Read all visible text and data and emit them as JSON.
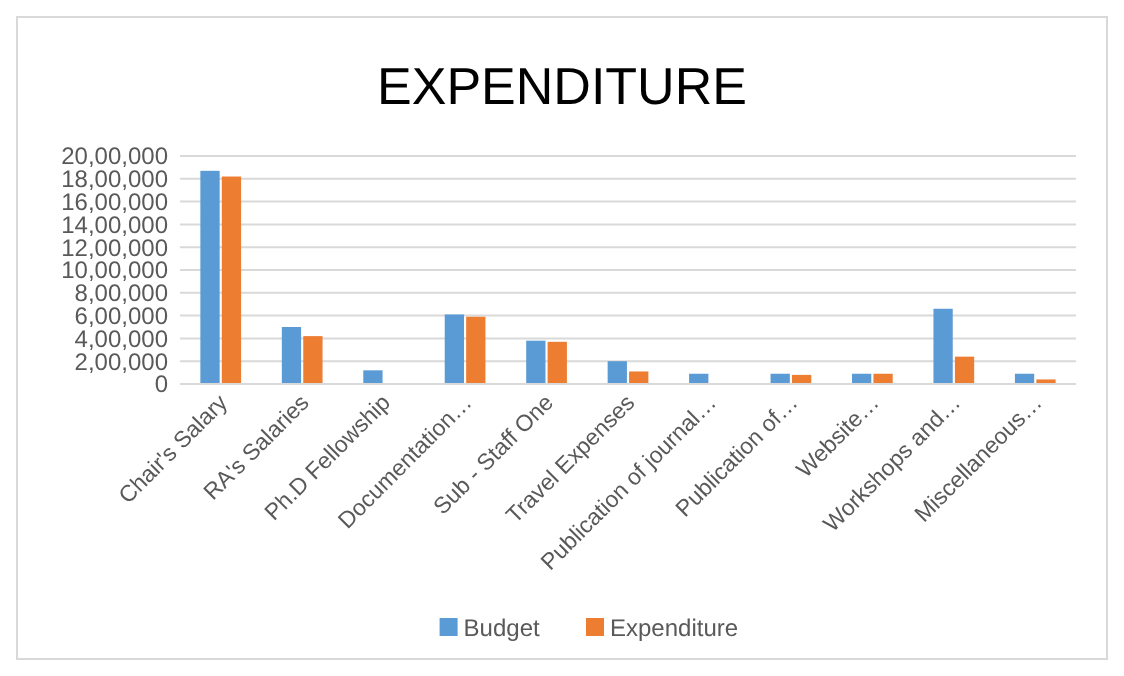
{
  "chart_data": {
    "type": "bar",
    "title": "EXPENDITURE",
    "categories": [
      "Chair's Salary",
      "RA's Salaries",
      "Ph.D Fellowship",
      "Documentation…",
      "Sub - Staff One",
      "Travel Expenses",
      "Publication of journal…",
      "Publication of…",
      "Website…",
      "Workshops and…",
      "Miscellaneous…"
    ],
    "series": [
      {
        "name": "Budget",
        "color": "#5b9bd5",
        "values": [
          1870000,
          500000,
          120000,
          610000,
          380000,
          200000,
          90000,
          90000,
          90000,
          660000,
          90000
        ]
      },
      {
        "name": "Expenditure",
        "color": "#ed7d31",
        "values": [
          1820000,
          420000,
          null,
          590000,
          370000,
          110000,
          null,
          80000,
          90000,
          240000,
          40000
        ]
      }
    ],
    "ylim": [
      0,
      2000000
    ],
    "yticks": [
      0,
      {
        "value": 200000,
        "label": "2,00,000"
      },
      {
        "value": 400000,
        "label": "4,00,000"
      },
      {
        "value": 600000,
        "label": "6,00,000"
      },
      {
        "value": 800000,
        "label": "8,00,000"
      },
      {
        "value": 1000000,
        "label": "10,00,000"
      },
      {
        "value": 1200000,
        "label": "12,00,000"
      },
      {
        "value": 1400000,
        "label": "14,00,000"
      },
      {
        "value": 1600000,
        "label": "16,00,000"
      },
      {
        "value": 1800000,
        "label": "18,00,000"
      },
      {
        "value": 2000000,
        "label": "20,00,000"
      }
    ],
    "grid": "y",
    "legend": "bottom"
  }
}
